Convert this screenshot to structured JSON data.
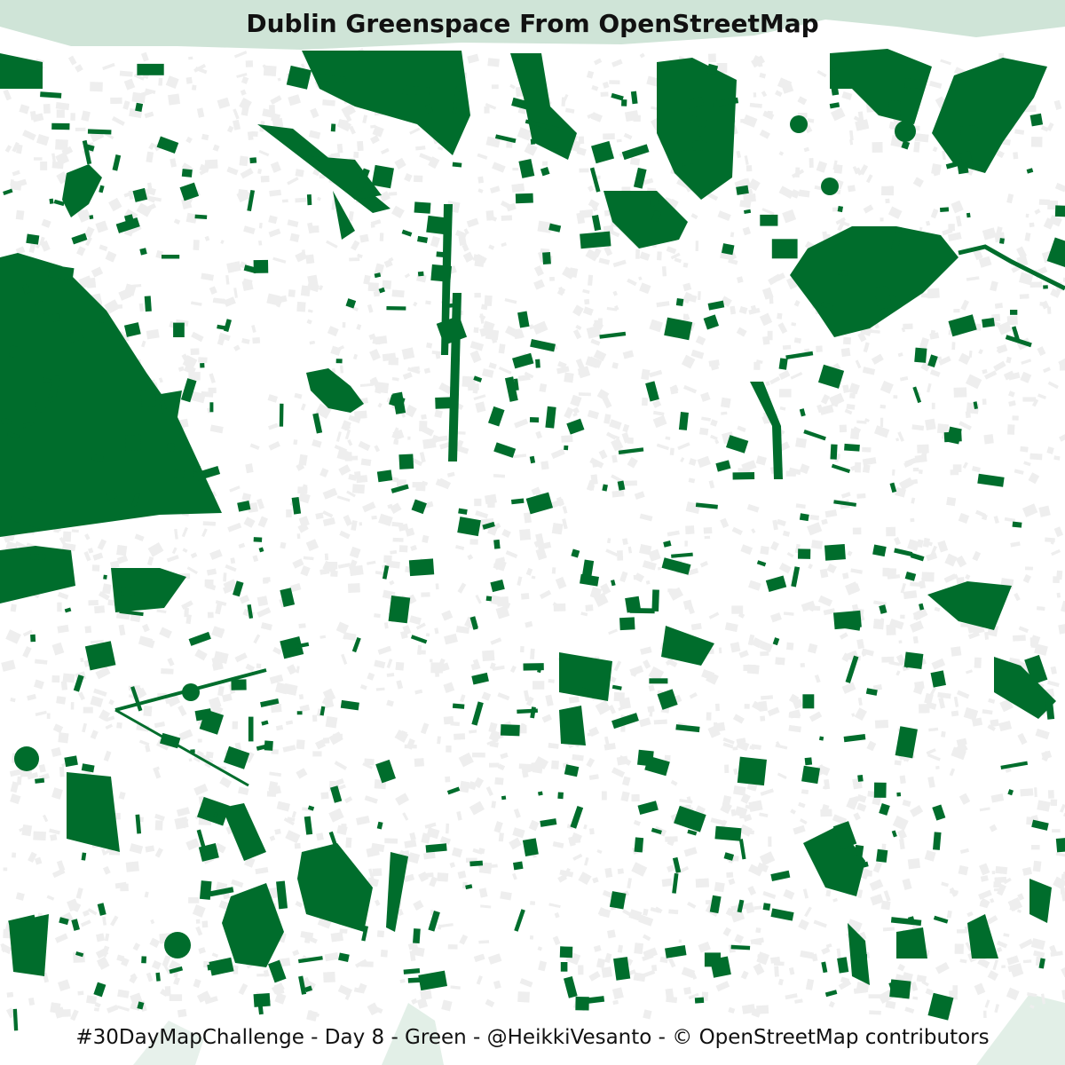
{
  "title": "Dublin Greenspace From OpenStreetMap",
  "caption": "#30DayMapChallenge - Day 8 - Green - @HeikkiVesanto - © OpenStreetMap contributors",
  "colors": {
    "greenspace": "#006d2c",
    "water": "#cfe4d7",
    "buildings": "#eeeeee",
    "background": "#ffffff"
  }
}
